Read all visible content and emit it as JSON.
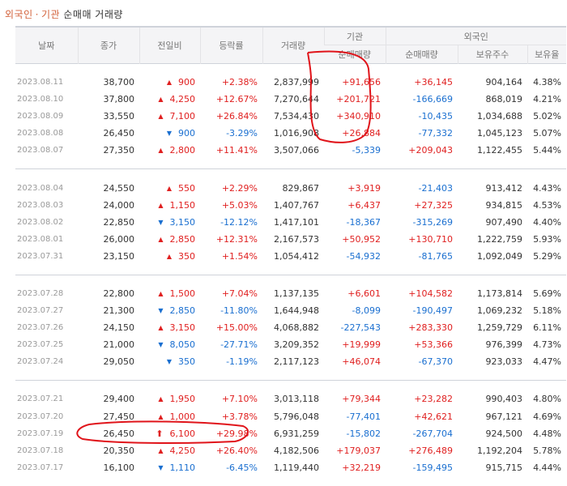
{
  "title": {
    "part1": "외국인",
    "separator": "·",
    "part2": "기관",
    "rest": "순매매 거래량"
  },
  "headers": {
    "date": "날짜",
    "close": "종가",
    "change": "전일비",
    "rate": "등락률",
    "volume": "거래량",
    "institution": "기관",
    "foreign": "외국인",
    "inst_net": "순매매량",
    "for_net": "순매매량",
    "holdings": "보유주수",
    "holding_ratio": "보유율"
  },
  "colors": {
    "up": "#e02020",
    "down": "#1a6fd0",
    "annotation": "#e0141a",
    "accent": "#d3623b"
  },
  "groups": [
    {
      "rows": [
        {
          "date": "2023.08.11",
          "close": "38,700",
          "dir": "up",
          "change": "900",
          "rate": "+2.38%",
          "volume": "2,837,999",
          "inst": "+91,656",
          "inst_dir": "up",
          "for": "+36,145",
          "for_dir": "up",
          "hold": "904,164",
          "ratio": "4.38%"
        },
        {
          "date": "2023.08.10",
          "close": "37,800",
          "dir": "up",
          "change": "4,250",
          "rate": "+12.67%",
          "volume": "7,270,644",
          "inst": "+201,721",
          "inst_dir": "up",
          "for": "-166,669",
          "for_dir": "down",
          "hold": "868,019",
          "ratio": "4.21%"
        },
        {
          "date": "2023.08.09",
          "close": "33,550",
          "dir": "up",
          "change": "7,100",
          "rate": "+26.84%",
          "volume": "7,534,430",
          "inst": "+340,910",
          "inst_dir": "up",
          "for": "-10,435",
          "for_dir": "down",
          "hold": "1,034,688",
          "ratio": "5.02%"
        },
        {
          "date": "2023.08.08",
          "close": "26,450",
          "dir": "down",
          "change": "900",
          "rate": "-3.29%",
          "volume": "1,016,908",
          "inst": "+26,884",
          "inst_dir": "up",
          "for": "-77,332",
          "for_dir": "down",
          "hold": "1,045,123",
          "ratio": "5.07%"
        },
        {
          "date": "2023.08.07",
          "close": "27,350",
          "dir": "up",
          "change": "2,800",
          "rate": "+11.41%",
          "volume": "3,507,066",
          "inst": "-5,339",
          "inst_dir": "down",
          "for": "+209,043",
          "for_dir": "up",
          "hold": "1,122,455",
          "ratio": "5.44%"
        }
      ]
    },
    {
      "rows": [
        {
          "date": "2023.08.04",
          "close": "24,550",
          "dir": "up",
          "change": "550",
          "rate": "+2.29%",
          "volume": "829,867",
          "inst": "+3,919",
          "inst_dir": "up",
          "for": "-21,403",
          "for_dir": "down",
          "hold": "913,412",
          "ratio": "4.43%"
        },
        {
          "date": "2023.08.03",
          "close": "24,000",
          "dir": "up",
          "change": "1,150",
          "rate": "+5.03%",
          "volume": "1,407,767",
          "inst": "+6,437",
          "inst_dir": "up",
          "for": "+27,325",
          "for_dir": "up",
          "hold": "934,815",
          "ratio": "4.53%"
        },
        {
          "date": "2023.08.02",
          "close": "22,850",
          "dir": "down",
          "change": "3,150",
          "rate": "-12.12%",
          "volume": "1,417,101",
          "inst": "-18,367",
          "inst_dir": "down",
          "for": "-315,269",
          "for_dir": "down",
          "hold": "907,490",
          "ratio": "4.40%"
        },
        {
          "date": "2023.08.01",
          "close": "26,000",
          "dir": "up",
          "change": "2,850",
          "rate": "+12.31%",
          "volume": "2,167,573",
          "inst": "+50,952",
          "inst_dir": "up",
          "for": "+130,710",
          "for_dir": "up",
          "hold": "1,222,759",
          "ratio": "5.93%"
        },
        {
          "date": "2023.07.31",
          "close": "23,150",
          "dir": "up",
          "change": "350",
          "rate": "+1.54%",
          "volume": "1,054,412",
          "inst": "-54,932",
          "inst_dir": "down",
          "for": "-81,765",
          "for_dir": "down",
          "hold": "1,092,049",
          "ratio": "5.29%"
        }
      ]
    },
    {
      "rows": [
        {
          "date": "2023.07.28",
          "close": "22,800",
          "dir": "up",
          "change": "1,500",
          "rate": "+7.04%",
          "volume": "1,137,135",
          "inst": "+6,601",
          "inst_dir": "up",
          "for": "+104,582",
          "for_dir": "up",
          "hold": "1,173,814",
          "ratio": "5.69%"
        },
        {
          "date": "2023.07.27",
          "close": "21,300",
          "dir": "down",
          "change": "2,850",
          "rate": "-11.80%",
          "volume": "1,644,948",
          "inst": "-8,099",
          "inst_dir": "down",
          "for": "-190,497",
          "for_dir": "down",
          "hold": "1,069,232",
          "ratio": "5.18%"
        },
        {
          "date": "2023.07.26",
          "close": "24,150",
          "dir": "up",
          "change": "3,150",
          "rate": "+15.00%",
          "volume": "4,068,882",
          "inst": "-227,543",
          "inst_dir": "down",
          "for": "+283,330",
          "for_dir": "up",
          "hold": "1,259,729",
          "ratio": "6.11%"
        },
        {
          "date": "2023.07.25",
          "close": "21,000",
          "dir": "down",
          "change": "8,050",
          "rate": "-27.71%",
          "volume": "3,209,352",
          "inst": "+19,999",
          "inst_dir": "up",
          "for": "+53,366",
          "for_dir": "up",
          "hold": "976,399",
          "ratio": "4.73%"
        },
        {
          "date": "2023.07.24",
          "close": "29,050",
          "dir": "down",
          "change": "350",
          "rate": "-1.19%",
          "volume": "2,117,123",
          "inst": "+46,074",
          "inst_dir": "up",
          "for": "-67,370",
          "for_dir": "down",
          "hold": "923,033",
          "ratio": "4.47%"
        }
      ]
    },
    {
      "rows": [
        {
          "date": "2023.07.21",
          "close": "29,400",
          "dir": "up",
          "change": "1,950",
          "rate": "+7.10%",
          "volume": "3,013,118",
          "inst": "+79,344",
          "inst_dir": "up",
          "for": "+23,282",
          "for_dir": "up",
          "hold": "990,403",
          "ratio": "4.80%"
        },
        {
          "date": "2023.07.20",
          "close": "27,450",
          "dir": "up",
          "change": "1,000",
          "rate": "+3.78%",
          "volume": "5,796,048",
          "inst": "-77,401",
          "inst_dir": "down",
          "for": "+42,621",
          "for_dir": "up",
          "hold": "967,121",
          "ratio": "4.69%"
        },
        {
          "date": "2023.07.19",
          "close": "26,450",
          "dir": "limit",
          "change": "6,100",
          "rate": "+29.98%",
          "volume": "6,931,259",
          "inst": "-15,802",
          "inst_dir": "down",
          "for": "-267,704",
          "for_dir": "down",
          "hold": "924,500",
          "ratio": "4.48%"
        },
        {
          "date": "2023.07.18",
          "close": "20,350",
          "dir": "up",
          "change": "4,250",
          "rate": "+26.40%",
          "volume": "4,182,506",
          "inst": "+179,037",
          "inst_dir": "up",
          "for": "+276,489",
          "for_dir": "up",
          "hold": "1,192,204",
          "ratio": "5.78%"
        },
        {
          "date": "2023.07.17",
          "close": "16,100",
          "dir": "down",
          "change": "1,110",
          "rate": "-6.45%",
          "volume": "1,119,440",
          "inst": "+32,219",
          "inst_dir": "up",
          "for": "-159,495",
          "for_dir": "down",
          "hold": "915,715",
          "ratio": "4.44%"
        }
      ]
    }
  ]
}
